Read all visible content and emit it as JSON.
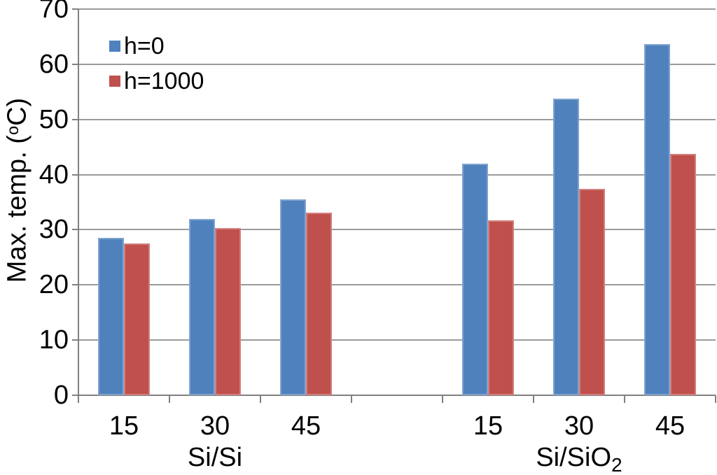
{
  "chart_data": {
    "type": "bar",
    "title": "",
    "ylabel": {
      "pre": "Max. temp. (",
      "sup": "o",
      "post": "C)"
    },
    "ylim": [
      0,
      70
    ],
    "yticks": [
      0,
      10,
      20,
      30,
      40,
      50,
      60,
      70
    ],
    "grid": true,
    "legend_position": "top-left",
    "groups": [
      {
        "label": "Si/Si",
        "label_sub": "",
        "categories": [
          "15",
          "30",
          "45"
        ]
      },
      {
        "label": "Si/SiO",
        "label_sub": "2",
        "categories": [
          "15",
          "30",
          "45"
        ]
      }
    ],
    "series": [
      {
        "name": "h=0",
        "color": "#4F81BD",
        "values": [
          [
            28.5,
            32.0,
            35.5
          ],
          [
            42.0,
            53.8,
            63.7
          ]
        ]
      },
      {
        "name": "h=1000",
        "color": "#C0504D",
        "values": [
          [
            27.5,
            30.3,
            33.1
          ],
          [
            31.7,
            37.4,
            43.8
          ]
        ]
      }
    ],
    "colors": {
      "gridline": "#9b9b9b",
      "axis": "#808080",
      "text": "#000000",
      "background": "#ffffff"
    }
  }
}
